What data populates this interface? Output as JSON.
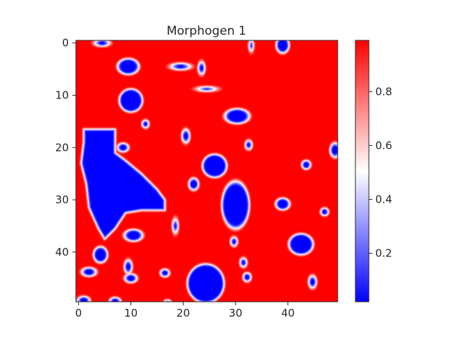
{
  "chart_data": {
    "type": "heatmap",
    "title": "Morphogen 1",
    "grid": false,
    "colormap": "bwr",
    "grid_size": [
      50,
      50
    ],
    "x_ticks": [
      0,
      10,
      20,
      30,
      40
    ],
    "y_ticks": [
      0,
      10,
      20,
      30,
      40
    ],
    "x_tick_labels": [
      "0",
      "10",
      "20",
      "30",
      "40"
    ],
    "y_tick_labels": [
      "0",
      "10",
      "20",
      "30",
      "40"
    ],
    "xlim": [
      -0.5,
      49.5
    ],
    "ylim": [
      49.5,
      -0.5
    ],
    "colorbar": {
      "range": [
        0.02,
        0.99
      ],
      "ticks": [
        0.2,
        0.4,
        0.6,
        0.8
      ],
      "tick_labels": [
        "0.2",
        "0.4",
        "0.6",
        "0.8"
      ]
    },
    "background_value": 0.99,
    "low_value": 0.02,
    "blobs": [
      {
        "cx": 4.5,
        "cy": 0,
        "rx": 1.3,
        "ry": 0.6
      },
      {
        "cx": 39,
        "cy": 0.4,
        "rx": 1.2,
        "ry": 1.5
      },
      {
        "cx": 33,
        "cy": 0.5,
        "rx": 0.4,
        "ry": 0.9
      },
      {
        "cx": 9.5,
        "cy": 4.5,
        "rx": 2,
        "ry": 1.5
      },
      {
        "cx": 19.5,
        "cy": 4.5,
        "rx": 1.7,
        "ry": 0.6
      },
      {
        "cx": 23.5,
        "cy": 4.8,
        "rx": 0.6,
        "ry": 1.1
      },
      {
        "cx": 24.5,
        "cy": 8.8,
        "rx": 1.5,
        "ry": 0.4
      },
      {
        "cx": 10,
        "cy": 11,
        "rx": 2.2,
        "ry": 2.2
      },
      {
        "cx": 30.3,
        "cy": 14,
        "rx": 2.3,
        "ry": 1.4
      },
      {
        "cx": 12.8,
        "cy": 15.5,
        "rx": 0.6,
        "ry": 0.7
      },
      {
        "cx": 20.5,
        "cy": 17.8,
        "rx": 0.7,
        "ry": 1.2
      },
      {
        "cx": 32.5,
        "cy": 19.5,
        "rx": 0.6,
        "ry": 0.8
      },
      {
        "cx": 8.5,
        "cy": 20,
        "rx": 1,
        "ry": 0.8
      },
      {
        "cx": 49,
        "cy": 20.5,
        "rx": 0.9,
        "ry": 1.3
      },
      {
        "cx": 26,
        "cy": 23.5,
        "rx": 2.3,
        "ry": 2.2
      },
      {
        "cx": 43.5,
        "cy": 23.3,
        "rx": 0.8,
        "ry": 0.8
      },
      {
        "cx": 22,
        "cy": 27,
        "rx": 0.9,
        "ry": 1.1
      },
      {
        "cx": 30,
        "cy": 31,
        "rx": 2.6,
        "ry": 4.5
      },
      {
        "cx": 39,
        "cy": 30.8,
        "rx": 1.3,
        "ry": 1.1
      },
      {
        "cx": 47,
        "cy": 32.3,
        "rx": 0.7,
        "ry": 0.7
      },
      {
        "cx": 18.5,
        "cy": 35,
        "rx": 0.5,
        "ry": 1.2
      },
      {
        "cx": 10.5,
        "cy": 36.8,
        "rx": 1.7,
        "ry": 1.1
      },
      {
        "cx": 29.7,
        "cy": 38,
        "rx": 0.6,
        "ry": 0.8
      },
      {
        "cx": 42.5,
        "cy": 38.5,
        "rx": 2.3,
        "ry": 2
      },
      {
        "cx": 4.2,
        "cy": 40.5,
        "rx": 1.3,
        "ry": 1.5
      },
      {
        "cx": 31.5,
        "cy": 42,
        "rx": 0.6,
        "ry": 0.8
      },
      {
        "cx": 9.5,
        "cy": 42.8,
        "rx": 0.7,
        "ry": 1.2
      },
      {
        "cx": 2,
        "cy": 43.8,
        "rx": 1.3,
        "ry": 0.8
      },
      {
        "cx": 16.5,
        "cy": 44,
        "rx": 0.8,
        "ry": 0.7
      },
      {
        "cx": 32.2,
        "cy": 44.8,
        "rx": 0.7,
        "ry": 0.8
      },
      {
        "cx": 10,
        "cy": 45,
        "rx": 1.1,
        "ry": 0.8
      },
      {
        "cx": 24.3,
        "cy": 46,
        "rx": 3.5,
        "ry": 3.7
      },
      {
        "cx": 44.7,
        "cy": 45.7,
        "rx": 0.7,
        "ry": 1.1
      },
      {
        "cx": 7,
        "cy": 49.5,
        "rx": 1,
        "ry": 0.8
      },
      {
        "cx": 1,
        "cy": 49.3,
        "rx": 1.1,
        "ry": 0.8
      },
      {
        "cx": 17,
        "cy": 49.7,
        "rx": 0.6,
        "ry": 0.5
      }
    ],
    "big_blob": [
      [
        1,
        16.5
      ],
      [
        7,
        16.5
      ],
      [
        7,
        21
      ],
      [
        9,
        22.5
      ],
      [
        12,
        25
      ],
      [
        15,
        28
      ],
      [
        16.5,
        30
      ],
      [
        16.5,
        32
      ],
      [
        12,
        32
      ],
      [
        9,
        32.5
      ],
      [
        7,
        35.5
      ],
      [
        5,
        37.5
      ],
      [
        3.8,
        35.5
      ],
      [
        2,
        31.5
      ],
      [
        1.5,
        27
      ],
      [
        0.5,
        23
      ],
      [
        1,
        19
      ]
    ]
  }
}
